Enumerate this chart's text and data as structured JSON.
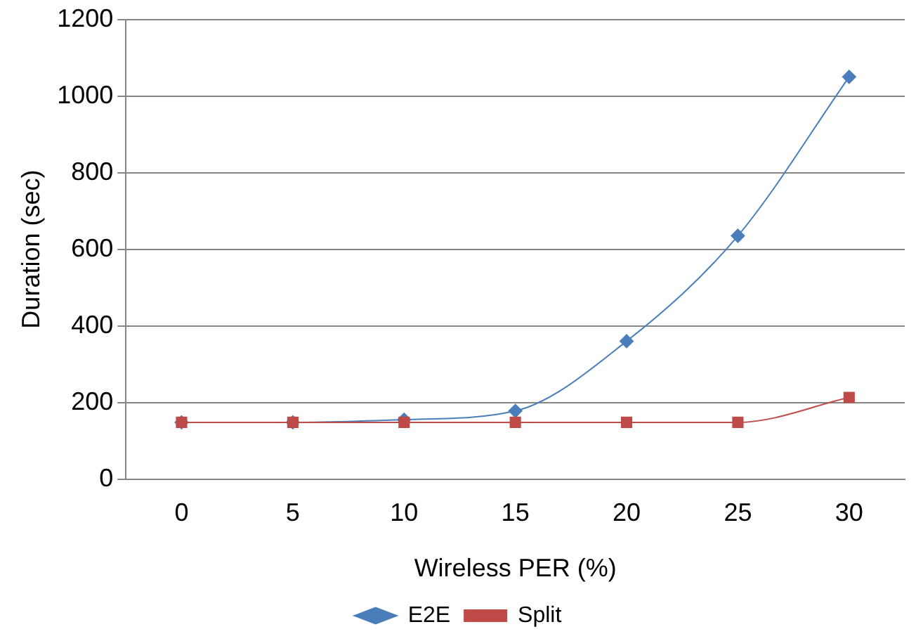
{
  "chart_data": {
    "type": "line",
    "xlabel": "Wireless PER (%)",
    "ylabel": "Duration (sec)",
    "categories": [
      "0",
      "5",
      "10",
      "15",
      "20",
      "25",
      "30"
    ],
    "series": [
      {
        "name": "E2E",
        "color": "#4a7ebb",
        "marker": "diamond",
        "values": [
          148,
          148,
          155,
          178,
          360,
          635,
          1050
        ]
      },
      {
        "name": "Split",
        "color": "#be4b48",
        "marker": "square",
        "values": [
          148,
          148,
          148,
          148,
          148,
          148,
          213
        ]
      }
    ],
    "ylim": [
      0,
      1200
    ],
    "yticks": [
      0,
      200,
      400,
      600,
      800,
      1000,
      1200
    ],
    "grid": "y",
    "legend": "bottom"
  }
}
